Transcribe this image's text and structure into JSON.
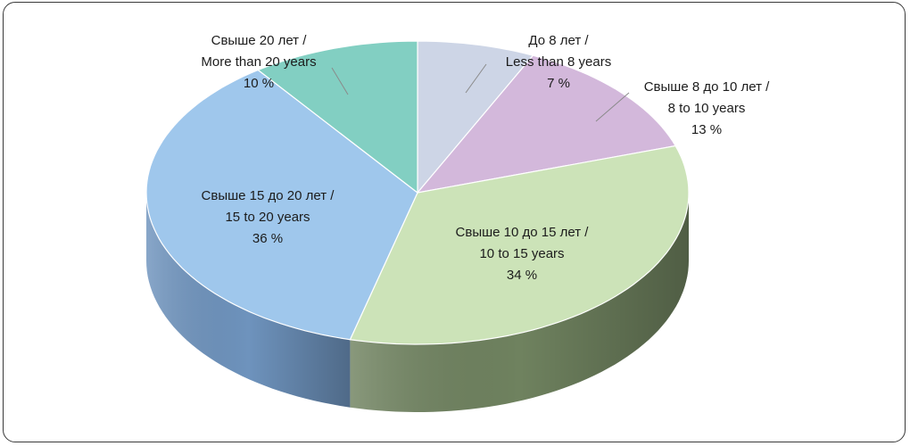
{
  "chart_data": {
    "type": "pie",
    "title": "",
    "slices": [
      {
        "line1": "До 8 лет /",
        "line2": "Less than 8 years",
        "pct": "7 %",
        "value": 7,
        "color": "#cdd5e6",
        "side": "#8f9ab0"
      },
      {
        "line1": "Свыше 8 до 10 лет /",
        "line2": "8 to 10 years",
        "pct": "13 %",
        "value": 13,
        "color": "#d3b8db",
        "side": "#9a7fa3"
      },
      {
        "line1": "Свыше 10 до 15 лет /",
        "line2": "10 to 15 years",
        "pct": "34 %",
        "value": 34,
        "color": "#cce3b8",
        "side": "#6f825f"
      },
      {
        "line1": "Свыше 15 до 20 лет /",
        "line2": "15 to 20 years",
        "pct": "36 %",
        "value": 36,
        "color": "#9fc7ec",
        "side": "#6e93bd"
      },
      {
        "line1": "Свыше 20 лет /",
        "line2": "More than 20 years",
        "pct": "10 %",
        "value": 10,
        "color": "#82cfc2",
        "side": "#5a9a8f"
      }
    ]
  }
}
